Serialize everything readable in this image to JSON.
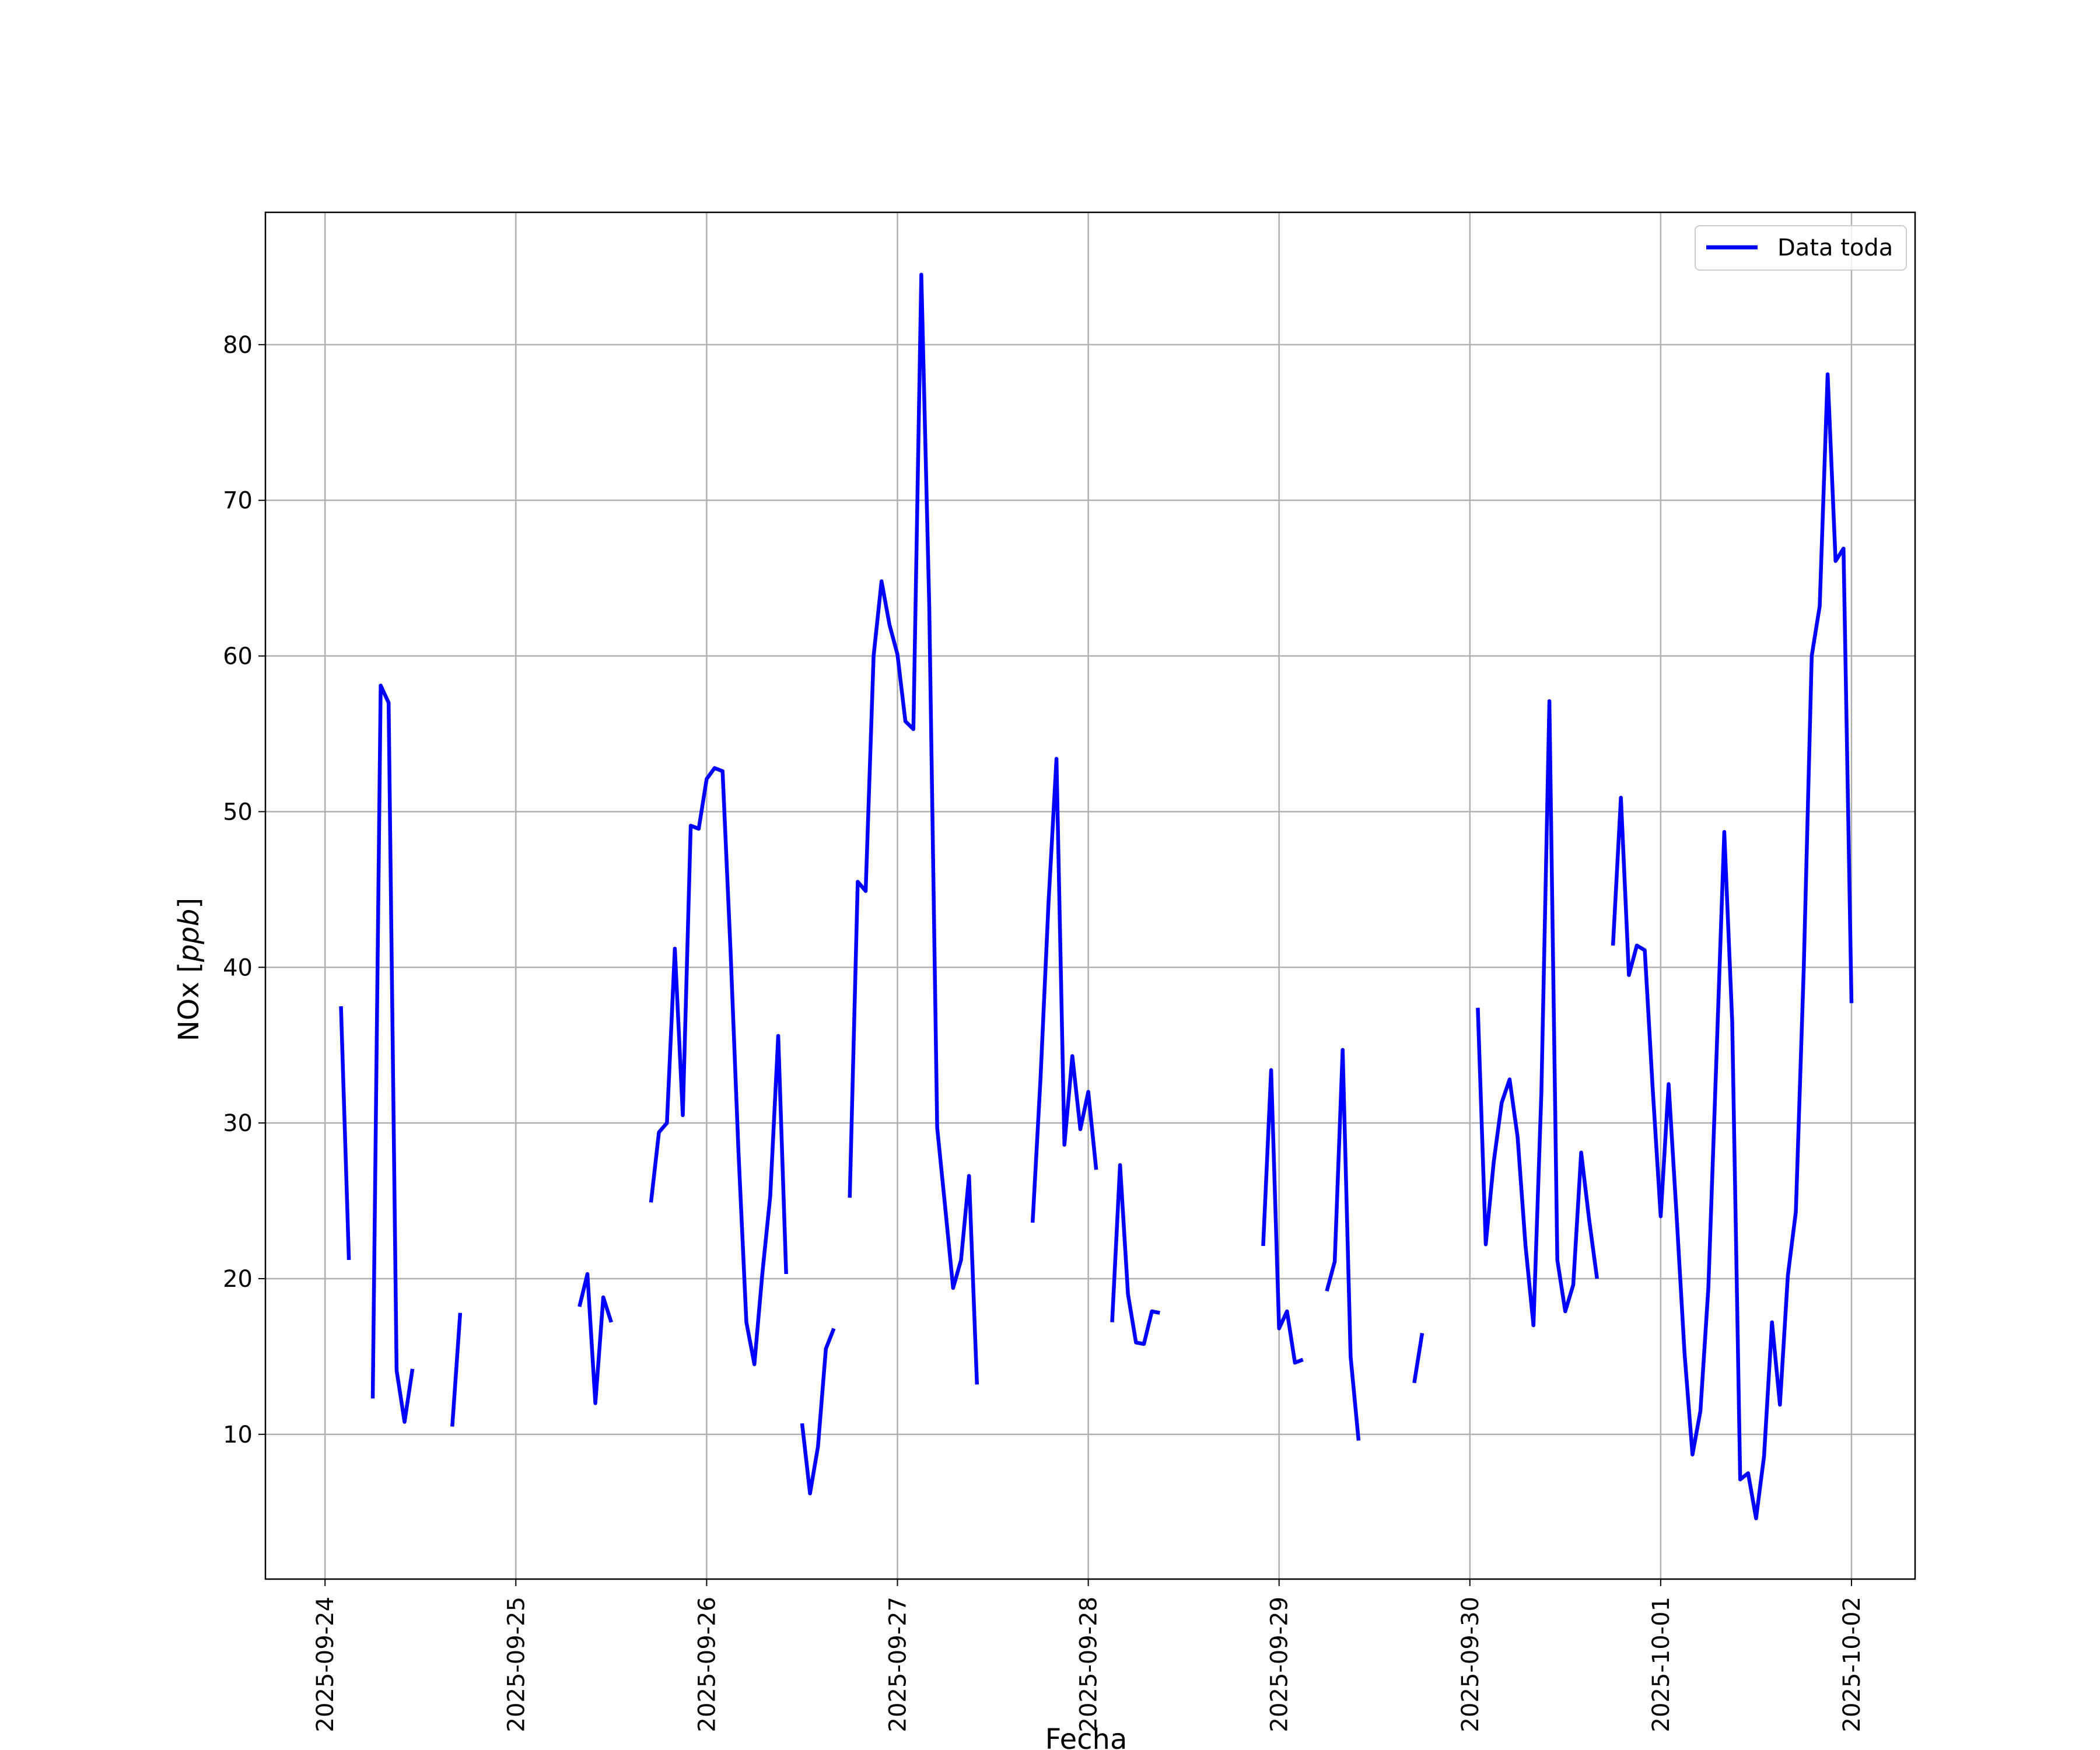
{
  "chart_data": {
    "type": "line",
    "title": "",
    "xlabel": "Fecha",
    "ylabel": "NOx [ppb]",
    "ylabel_plain": "NOx [",
    "ylabel_unit": "ppb",
    "ylabel_close": "]",
    "grid": true,
    "legend_placement": "top-right",
    "x_is_date": true,
    "xlim": [
      "2025-09-23 16:30",
      "2025-10-02 08:00"
    ],
    "ylim": [
      0.7,
      88.5
    ],
    "x_ticks": [
      "2025-09-24",
      "2025-09-25",
      "2025-09-26",
      "2025-09-27",
      "2025-09-28",
      "2025-09-29",
      "2025-09-30",
      "2025-10-01",
      "2025-10-02"
    ],
    "y_ticks": [
      10,
      20,
      30,
      40,
      50,
      60,
      70,
      80
    ],
    "colors": {
      "series": "#0000ff",
      "grid": "#b0b0b0",
      "axis": "#000000"
    },
    "series": [
      {
        "name": "Data toda",
        "points": [
          [
            "2025-09-24 02:00",
            37.5
          ],
          [
            "2025-09-24 03:00",
            21.2
          ],
          [
            "2025-09-24 04:00",
            null
          ],
          [
            "2025-09-24 06:00",
            12.3
          ],
          [
            "2025-09-24 07:00",
            58.1
          ],
          [
            "2025-09-24 08:00",
            57.0
          ],
          [
            "2025-09-24 09:00",
            14.1
          ],
          [
            "2025-09-24 10:00",
            10.8
          ],
          [
            "2025-09-24 11:00",
            14.2
          ],
          [
            "2025-09-24 12:00",
            null
          ],
          [
            "2025-09-24 16:00",
            10.5
          ],
          [
            "2025-09-24 17:00",
            17.8
          ],
          [
            "2025-09-24 18:00",
            null
          ],
          [
            "2025-09-25 08:00",
            18.2
          ],
          [
            "2025-09-25 09:00",
            20.3
          ],
          [
            "2025-09-25 10:00",
            12.0
          ],
          [
            "2025-09-25 11:00",
            18.8
          ],
          [
            "2025-09-25 12:00",
            17.2
          ],
          [
            "2025-09-25 13:00",
            null
          ],
          [
            "2025-09-25 17:00",
            24.9
          ],
          [
            "2025-09-25 18:00",
            29.4
          ],
          [
            "2025-09-25 19:00",
            30.0
          ],
          [
            "2025-09-25 20:00",
            41.2
          ],
          [
            "2025-09-25 21:00",
            30.5
          ],
          [
            "2025-09-25 22:00",
            49.1
          ],
          [
            "2025-09-25 23:00",
            48.9
          ],
          [
            "2025-09-26 00:00",
            52.1
          ],
          [
            "2025-09-26 01:00",
            52.8
          ],
          [
            "2025-09-26 02:00",
            52.6
          ],
          [
            "2025-09-26 03:00",
            41.1
          ],
          [
            "2025-09-26 04:00",
            28.2
          ],
          [
            "2025-09-26 05:00",
            17.2
          ],
          [
            "2025-09-26 06:00",
            14.5
          ],
          [
            "2025-09-26 07:00",
            20.3
          ],
          [
            "2025-09-26 08:00",
            25.3
          ],
          [
            "2025-09-26 09:00",
            35.6
          ],
          [
            "2025-09-26 10:00",
            20.3
          ],
          [
            "2025-09-26 11:00",
            null
          ],
          [
            "2025-09-26 12:00",
            10.7
          ],
          [
            "2025-09-26 13:00",
            6.2
          ],
          [
            "2025-09-26 14:00",
            9.2
          ],
          [
            "2025-09-26 15:00",
            15.5
          ],
          [
            "2025-09-26 16:00",
            16.8
          ],
          [
            "2025-09-26 17:00",
            null
          ],
          [
            "2025-09-26 18:00",
            25.2
          ],
          [
            "2025-09-26 19:00",
            45.5
          ],
          [
            "2025-09-26 20:00",
            44.9
          ],
          [
            "2025-09-26 21:00",
            60.0
          ],
          [
            "2025-09-26 22:00",
            64.8
          ],
          [
            "2025-09-26 23:00",
            62.0
          ],
          [
            "2025-09-27 00:00",
            60.1
          ],
          [
            "2025-09-27 01:00",
            55.8
          ],
          [
            "2025-09-27 02:00",
            55.3
          ],
          [
            "2025-09-27 03:00",
            84.5
          ],
          [
            "2025-09-27 04:00",
            63.2
          ],
          [
            "2025-09-27 05:00",
            29.7
          ],
          [
            "2025-09-27 06:00",
            24.6
          ],
          [
            "2025-09-27 07:00",
            19.4
          ],
          [
            "2025-09-27 08:00",
            21.2
          ],
          [
            "2025-09-27 09:00",
            26.6
          ],
          [
            "2025-09-27 10:00",
            13.2
          ],
          [
            "2025-09-27 11:00",
            null
          ],
          [
            "2025-09-27 17:00",
            23.6
          ],
          [
            "2025-09-27 18:00",
            32.9
          ],
          [
            "2025-09-27 19:00",
            44.1
          ],
          [
            "2025-09-27 20:00",
            53.4
          ],
          [
            "2025-09-27 21:00",
            28.6
          ],
          [
            "2025-09-27 22:00",
            34.3
          ],
          [
            "2025-09-27 23:00",
            29.6
          ],
          [
            "2025-09-28 00:00",
            32.0
          ],
          [
            "2025-09-28 01:00",
            27.0
          ],
          [
            "2025-09-28 02:00",
            null
          ],
          [
            "2025-09-28 03:00",
            17.2
          ],
          [
            "2025-09-28 04:00",
            27.3
          ],
          [
            "2025-09-28 05:00",
            19.0
          ],
          [
            "2025-09-28 06:00",
            15.9
          ],
          [
            "2025-09-28 07:00",
            15.8
          ],
          [
            "2025-09-28 08:00",
            17.9
          ],
          [
            "2025-09-28 09:00",
            17.8
          ],
          [
            "2025-09-28 10:00",
            null
          ],
          [
            "2025-09-28 22:00",
            22.1
          ],
          [
            "2025-09-28 23:00",
            33.4
          ],
          [
            "2025-09-29 00:00",
            16.8
          ],
          [
            "2025-09-29 01:00",
            17.9
          ],
          [
            "2025-09-29 02:00",
            14.6
          ],
          [
            "2025-09-29 03:00",
            14.8
          ],
          [
            "2025-09-29 04:00",
            null
          ],
          [
            "2025-09-29 06:00",
            19.2
          ],
          [
            "2025-09-29 07:00",
            21.1
          ],
          [
            "2025-09-29 08:00",
            34.7
          ],
          [
            "2025-09-29 09:00",
            15.0
          ],
          [
            "2025-09-29 10:00",
            9.6
          ],
          [
            "2025-09-29 11:00",
            null
          ],
          [
            "2025-09-29 17:00",
            13.3
          ],
          [
            "2025-09-29 18:00",
            16.5
          ],
          [
            "2025-09-29 19:00",
            null
          ],
          [
            "2025-09-30 01:00",
            37.4
          ],
          [
            "2025-09-30 02:00",
            22.2
          ],
          [
            "2025-09-30 03:00",
            27.5
          ],
          [
            "2025-09-30 04:00",
            31.3
          ],
          [
            "2025-09-30 05:00",
            32.8
          ],
          [
            "2025-09-30 06:00",
            29.1
          ],
          [
            "2025-09-30 07:00",
            22.1
          ],
          [
            "2025-09-30 08:00",
            17.0
          ],
          [
            "2025-09-30 09:00",
            32.0
          ],
          [
            "2025-09-30 10:00",
            57.1
          ],
          [
            "2025-09-30 11:00",
            21.2
          ],
          [
            "2025-09-30 12:00",
            17.9
          ],
          [
            "2025-09-30 13:00",
            19.6
          ],
          [
            "2025-09-30 14:00",
            28.1
          ],
          [
            "2025-09-30 15:00",
            23.8
          ],
          [
            "2025-09-30 16:00",
            20.0
          ],
          [
            "2025-09-30 17:00",
            null
          ],
          [
            "2025-09-30 18:00",
            41.4
          ],
          [
            "2025-09-30 19:00",
            50.9
          ],
          [
            "2025-09-30 20:00",
            39.5
          ],
          [
            "2025-09-30 21:00",
            41.4
          ],
          [
            "2025-09-30 22:00",
            41.1
          ],
          [
            "2025-09-30 23:00",
            32.2
          ],
          [
            "2025-10-01 00:00",
            24.0
          ],
          [
            "2025-10-01 01:00",
            32.5
          ],
          [
            "2025-10-01 02:00",
            24.1
          ],
          [
            "2025-10-01 03:00",
            15.2
          ],
          [
            "2025-10-01 04:00",
            8.7
          ],
          [
            "2025-10-01 05:00",
            11.5
          ],
          [
            "2025-10-01 06:00",
            19.4
          ],
          [
            "2025-10-01 07:00",
            34.0
          ],
          [
            "2025-10-01 08:00",
            48.7
          ],
          [
            "2025-10-01 09:00",
            36.5
          ],
          [
            "2025-10-01 10:00",
            7.1
          ],
          [
            "2025-10-01 11:00",
            7.5
          ],
          [
            "2025-10-01 12:00",
            4.6
          ],
          [
            "2025-10-01 13:00",
            8.6
          ],
          [
            "2025-10-01 14:00",
            17.2
          ],
          [
            "2025-10-01 15:00",
            11.9
          ],
          [
            "2025-10-01 16:00",
            20.2
          ],
          [
            "2025-10-01 17:00",
            24.3
          ],
          [
            "2025-10-01 18:00",
            40.0
          ],
          [
            "2025-10-01 19:00",
            60.0
          ],
          [
            "2025-10-01 20:00",
            63.2
          ],
          [
            "2025-10-01 21:00",
            78.1
          ],
          [
            "2025-10-01 22:00",
            66.1
          ],
          [
            "2025-10-01 23:00",
            66.9
          ],
          [
            "2025-10-02 00:00",
            37.7
          ]
        ]
      }
    ]
  }
}
